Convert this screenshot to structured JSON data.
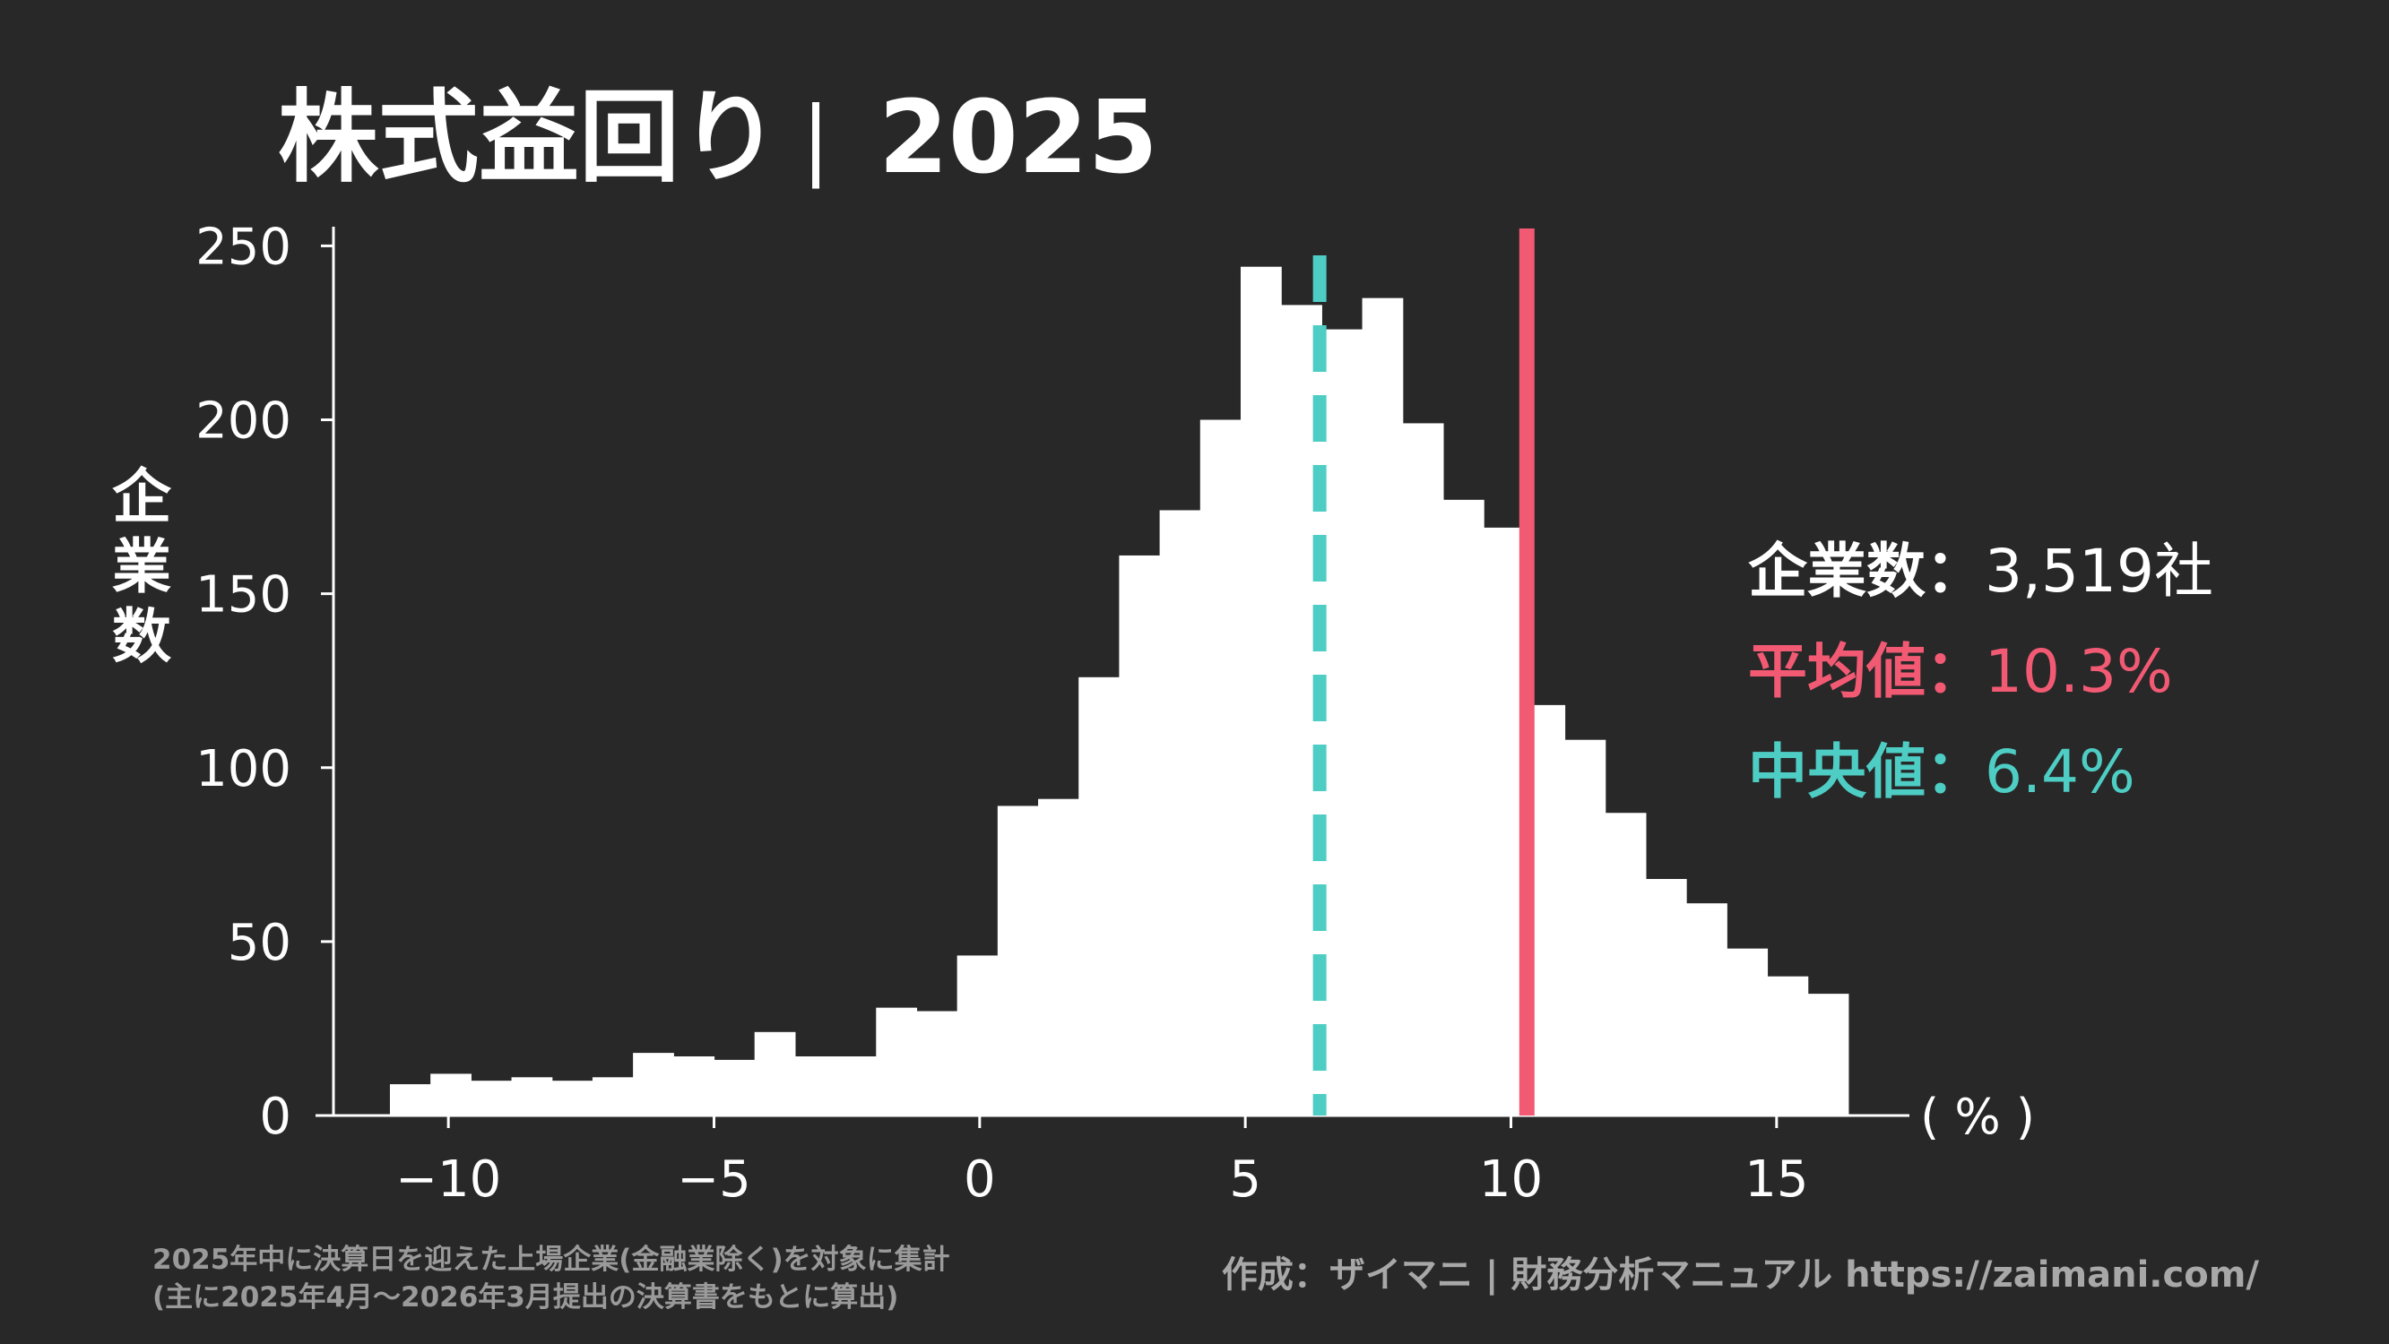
{
  "header": {
    "title_main": "株式益回り",
    "title_sep": "|",
    "title_year": "2025"
  },
  "chart_data": {
    "type": "bar",
    "title": "株式益回り｜2025",
    "ylabel": "企業数",
    "xunit": "( % )",
    "ylim": [
      0,
      255
    ],
    "xlim": [
      -12.5,
      17.5
    ],
    "xticks": [
      -10,
      -5,
      0,
      5,
      10,
      15
    ],
    "xtick_labels": [
      "−10",
      "−5",
      "0",
      "5",
      "10",
      "15"
    ],
    "yticks": [
      0,
      50,
      100,
      150,
      200,
      250
    ],
    "ytick_labels": [
      "0",
      "50",
      "100",
      "150",
      "200",
      "250"
    ],
    "bin_width": 0.7625,
    "bin_edges_start": -11.1,
    "values": [
      9,
      12,
      10,
      11,
      10,
      11,
      18,
      17,
      16,
      24,
      17,
      17,
      31,
      30,
      46,
      89,
      91,
      126,
      161,
      174,
      200,
      244,
      233,
      226,
      235,
      199,
      177,
      169,
      118,
      108,
      87,
      68,
      61,
      48,
      40,
      35
    ],
    "mean": 10.3,
    "median": 6.4,
    "legend": {
      "count_label": "企業数",
      "count_value": "3,519社",
      "mean_label": "平均値",
      "mean_value": "10.3%",
      "median_label": "中央値",
      "median_value": "6.4%",
      "separator": "："
    },
    "colors": {
      "bars": "#ffffff",
      "mean": "#f25a74",
      "median": "#4ecdc4",
      "axis": "#ffffff",
      "background": "#282828"
    }
  },
  "footer": {
    "note_line1": "2025年中に決算日を迎えた上場企業(金融業除く)を対象に集計",
    "note_line2": "(主に2025年4月〜2026年3月提出の決算書をもとに算出)",
    "credit": "作成：ザイマニ | 財務分析マニュアル https://zaimani.com/"
  }
}
